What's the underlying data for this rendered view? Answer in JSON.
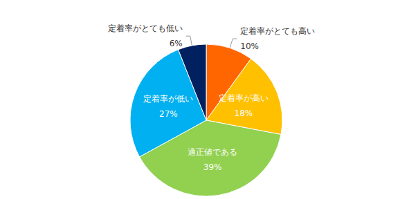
{
  "chart_data": {
    "type": "pie",
    "categories": [
      "定着率がとても高い",
      "定着率が高い",
      "適正値である",
      "定着率が低い",
      "定着率がとても低い"
    ],
    "values": [
      10,
      18,
      39,
      27,
      6
    ],
    "value_labels": [
      "10%",
      "18%",
      "39%",
      "27%",
      "6%"
    ],
    "colors": [
      "#ff6600",
      "#ffc000",
      "#92d050",
      "#00b0f0",
      "#002060"
    ],
    "data_labels": true
  }
}
